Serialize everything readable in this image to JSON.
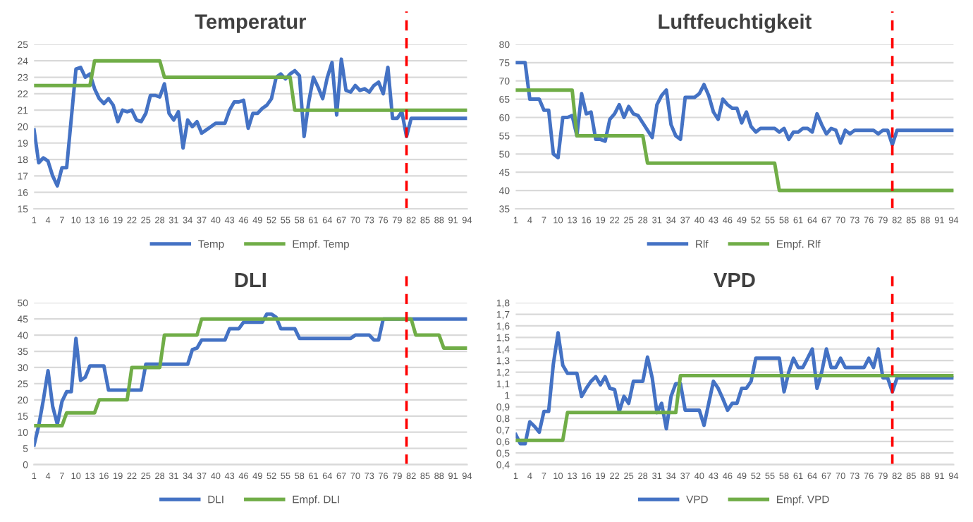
{
  "chart_data": [
    {
      "type": "line",
      "title": "Temperatur",
      "x": [
        1,
        2,
        3,
        4,
        5,
        6,
        7,
        8,
        9,
        10,
        11,
        12,
        13,
        14,
        15,
        16,
        17,
        18,
        19,
        20,
        21,
        22,
        23,
        24,
        25,
        26,
        27,
        28,
        29,
        30,
        31,
        32,
        33,
        34,
        35,
        36,
        37,
        38,
        39,
        40,
        41,
        42,
        43,
        44,
        45,
        46,
        47,
        48,
        49,
        50,
        51,
        52,
        53,
        54,
        55,
        56,
        57,
        58,
        59,
        60,
        61,
        62,
        63,
        64,
        65,
        66,
        67,
        68,
        69,
        70,
        71,
        72,
        73,
        74,
        75,
        76,
        77,
        78,
        79,
        80,
        81,
        82,
        83,
        84,
        85,
        86,
        87,
        88,
        89,
        90,
        91,
        92,
        93,
        94
      ],
      "series": [
        {
          "name": "Temp",
          "color": "#4472c4",
          "values": [
            19.8,
            17.8,
            18.1,
            17.9,
            17.0,
            16.4,
            17.5,
            17.5,
            20.5,
            23.5,
            23.6,
            23.0,
            23.2,
            22.3,
            21.7,
            21.4,
            21.7,
            21.3,
            20.3,
            21.0,
            20.9,
            21.0,
            20.4,
            20.3,
            20.8,
            21.9,
            21.9,
            21.8,
            22.6,
            20.8,
            20.4,
            20.9,
            18.7,
            20.4,
            20.0,
            20.3,
            19.6,
            19.8,
            20.0,
            20.2,
            20.2,
            20.2,
            21.0,
            21.5,
            21.5,
            21.6,
            19.9,
            20.8,
            20.8,
            21.1,
            21.3,
            21.7,
            23.0,
            23.2,
            22.9,
            23.2,
            23.4,
            23.1,
            19.4,
            21.5,
            23.0,
            22.4,
            21.7,
            23.0,
            23.9,
            20.7,
            24.1,
            22.2,
            22.1,
            22.5,
            22.2,
            22.3,
            22.1,
            22.5,
            22.7,
            22.0,
            23.6,
            20.5,
            20.5,
            20.9,
            19.4,
            20.5,
            20.5,
            20.5,
            20.5,
            20.5,
            20.5,
            20.5,
            20.5,
            20.5,
            20.5,
            20.5,
            20.5,
            20.5
          ]
        },
        {
          "name": "Empf. Temp",
          "color": "#70ad47",
          "x": [
            1,
            13,
            14,
            28,
            29,
            56,
            57,
            94
          ],
          "values": [
            22.5,
            22.5,
            24,
            24,
            23,
            23,
            21,
            21
          ]
        }
      ],
      "xlim": [
        1,
        94
      ],
      "xticks": [
        1,
        4,
        7,
        10,
        13,
        16,
        19,
        22,
        25,
        28,
        31,
        34,
        37,
        40,
        43,
        46,
        49,
        52,
        55,
        58,
        61,
        64,
        67,
        70,
        73,
        76,
        79,
        82,
        85,
        88,
        91,
        94
      ],
      "ylim": [
        15,
        25
      ],
      "yticks": [
        15,
        16,
        17,
        18,
        19,
        20,
        21,
        22,
        23,
        24,
        25
      ],
      "grid": "y",
      "legend": "bottom",
      "ref_lines": [
        {
          "axis": "x",
          "value": 81,
          "color": "#ff0000",
          "line_style": "dashed"
        }
      ]
    },
    {
      "type": "line",
      "title": "Luftfeuchtigkeit",
      "x": [
        1,
        2,
        3,
        4,
        5,
        6,
        7,
        8,
        9,
        10,
        11,
        12,
        13,
        14,
        15,
        16,
        17,
        18,
        19,
        20,
        21,
        22,
        23,
        24,
        25,
        26,
        27,
        28,
        29,
        30,
        31,
        32,
        33,
        34,
        35,
        36,
        37,
        38,
        39,
        40,
        41,
        42,
        43,
        44,
        45,
        46,
        47,
        48,
        49,
        50,
        51,
        52,
        53,
        54,
        55,
        56,
        57,
        58,
        59,
        60,
        61,
        62,
        63,
        64,
        65,
        66,
        67,
        68,
        69,
        70,
        71,
        72,
        73,
        74,
        75,
        76,
        77,
        78,
        79,
        80,
        81,
        82,
        83,
        84,
        85,
        86,
        87,
        88,
        89,
        90,
        91,
        92,
        93,
        94
      ],
      "series": [
        {
          "name": "Rlf",
          "color": "#4472c4",
          "values": [
            75,
            75,
            75,
            65,
            65,
            65,
            62,
            62,
            50,
            49,
            60,
            60,
            60.5,
            55,
            66.5,
            61,
            61.5,
            54,
            54,
            53.5,
            59.5,
            61,
            63.5,
            60,
            63,
            61,
            60.5,
            58.5,
            56.5,
            54.5,
            63.5,
            66,
            67.5,
            58,
            55,
            54,
            65.5,
            65.5,
            65.5,
            66.5,
            69,
            66,
            61.5,
            59.5,
            65,
            63.5,
            62.5,
            62.5,
            58.5,
            61.5,
            57.5,
            56,
            57,
            57,
            57,
            57,
            56,
            57,
            54,
            56,
            56,
            57,
            57,
            56,
            61,
            58,
            55.5,
            57,
            56.5,
            53,
            56.5,
            55.5,
            56.5,
            56.5,
            56.5,
            56.5,
            56.5,
            55.5,
            56.5,
            56.5,
            52.5,
            56.5,
            56.5,
            56.5,
            56.5,
            56.5,
            56.5,
            56.5,
            56.5,
            56.5,
            56.5,
            56.5,
            56.5,
            56.5
          ]
        },
        {
          "name": "Empf. Rlf",
          "color": "#70ad47",
          "x": [
            1,
            13,
            14,
            28,
            29,
            56,
            57,
            94
          ],
          "values": [
            67.5,
            67.5,
            55,
            55,
            47.5,
            47.5,
            40,
            40
          ]
        }
      ],
      "xlim": [
        1,
        94
      ],
      "xticks": [
        1,
        4,
        7,
        10,
        13,
        16,
        19,
        22,
        25,
        28,
        31,
        34,
        37,
        40,
        43,
        46,
        49,
        52,
        55,
        58,
        61,
        64,
        67,
        70,
        73,
        76,
        79,
        82,
        85,
        88,
        91,
        94
      ],
      "ylim": [
        35,
        80
      ],
      "yticks": [
        35,
        40,
        45,
        50,
        55,
        60,
        65,
        70,
        75,
        80
      ],
      "grid": "y",
      "legend": "bottom",
      "ref_lines": [
        {
          "axis": "x",
          "value": 81,
          "color": "#ff0000",
          "line_style": "dashed"
        }
      ]
    },
    {
      "type": "line",
      "title": "DLI",
      "x": [
        1,
        2,
        3,
        4,
        5,
        6,
        7,
        8,
        9,
        10,
        11,
        12,
        13,
        14,
        15,
        16,
        17,
        18,
        19,
        20,
        21,
        22,
        23,
        24,
        25,
        26,
        27,
        28,
        29,
        30,
        31,
        32,
        33,
        34,
        35,
        36,
        37,
        38,
        39,
        40,
        41,
        42,
        43,
        44,
        45,
        46,
        47,
        48,
        49,
        50,
        51,
        52,
        53,
        54,
        55,
        56,
        57,
        58,
        59,
        60,
        61,
        62,
        63,
        64,
        65,
        66,
        67,
        68,
        69,
        70,
        71,
        72,
        73,
        74,
        75,
        76,
        77,
        78,
        79,
        80,
        81,
        82,
        83,
        84,
        85,
        86,
        87,
        88,
        89,
        90,
        91,
        92,
        93,
        94
      ],
      "series": [
        {
          "name": "DLI",
          "color": "#4472c4",
          "values": [
            6,
            12,
            20,
            29,
            18,
            12.5,
            19.5,
            22.5,
            22.5,
            39,
            26,
            27,
            30.5,
            30.5,
            30.5,
            30.5,
            23,
            23,
            23,
            23,
            23,
            23,
            23,
            23,
            31,
            31,
            31,
            31,
            31,
            31,
            31,
            31,
            31,
            31,
            35.5,
            36,
            38.5,
            38.5,
            38.5,
            38.5,
            38.5,
            38.5,
            42,
            42,
            42,
            44,
            44,
            44,
            44,
            44,
            46.5,
            46.5,
            45.5,
            42,
            42,
            42,
            42,
            39,
            39,
            39,
            39,
            39,
            39,
            39,
            39,
            39,
            39,
            39,
            39,
            40,
            40,
            40,
            40,
            38.5,
            38.5,
            45,
            45,
            45,
            45,
            45,
            45,
            45,
            45,
            45,
            45,
            45,
            45,
            45,
            45,
            45,
            45,
            45,
            45,
            45
          ]
        },
        {
          "name": "Empf. DLI",
          "color": "#70ad47",
          "x": [
            1,
            7,
            8,
            14,
            15,
            21,
            22,
            28,
            29,
            36,
            37,
            82,
            83,
            88,
            89,
            94
          ],
          "values": [
            12,
            12,
            16,
            16,
            20,
            20,
            30,
            30,
            40,
            40,
            45,
            45,
            40,
            40,
            36,
            36
          ]
        }
      ],
      "xlim": [
        1,
        94
      ],
      "xticks": [
        1,
        4,
        7,
        10,
        13,
        16,
        19,
        22,
        25,
        28,
        31,
        34,
        37,
        40,
        43,
        46,
        49,
        52,
        55,
        58,
        61,
        64,
        67,
        70,
        73,
        76,
        79,
        82,
        85,
        88,
        91,
        94
      ],
      "ylim": [
        0,
        50
      ],
      "yticks": [
        0,
        5,
        10,
        15,
        20,
        25,
        30,
        35,
        40,
        45,
        50
      ],
      "grid": "y",
      "legend": "bottom",
      "ref_lines": [
        {
          "axis": "x",
          "value": 81,
          "color": "#ff0000",
          "line_style": "dashed"
        }
      ]
    },
    {
      "type": "line",
      "title": "VPD",
      "x": [
        1,
        2,
        3,
        4,
        5,
        6,
        7,
        8,
        9,
        10,
        11,
        12,
        13,
        14,
        15,
        16,
        17,
        18,
        19,
        20,
        21,
        22,
        23,
        24,
        25,
        26,
        27,
        28,
        29,
        30,
        31,
        32,
        33,
        34,
        35,
        36,
        37,
        38,
        39,
        40,
        41,
        42,
        43,
        44,
        45,
        46,
        47,
        48,
        49,
        50,
        51,
        52,
        53,
        54,
        55,
        56,
        57,
        58,
        59,
        60,
        61,
        62,
        63,
        64,
        65,
        66,
        67,
        68,
        69,
        70,
        71,
        72,
        73,
        74,
        75,
        76,
        77,
        78,
        79,
        80,
        81,
        82,
        83,
        84,
        85,
        86,
        87,
        88,
        89,
        90,
        91,
        92,
        93,
        94
      ],
      "series": [
        {
          "name": "VPD",
          "color": "#4472c4",
          "values": [
            0.66,
            0.58,
            0.58,
            0.77,
            0.73,
            0.68,
            0.86,
            0.86,
            1.27,
            1.54,
            1.26,
            1.19,
            1.19,
            1.19,
            0.99,
            1.06,
            1.12,
            1.16,
            1.09,
            1.16,
            1.06,
            1.05,
            0.86,
            0.99,
            0.93,
            1.12,
            1.12,
            1.12,
            1.33,
            1.15,
            0.85,
            0.93,
            0.71,
            0.99,
            1.1,
            1.1,
            0.87,
            0.87,
            0.87,
            0.87,
            0.74,
            0.93,
            1.12,
            1.06,
            0.97,
            0.87,
            0.93,
            0.93,
            1.06,
            1.06,
            1.12,
            1.32,
            1.32,
            1.32,
            1.32,
            1.32,
            1.32,
            1.03,
            1.2,
            1.32,
            1.24,
            1.24,
            1.32,
            1.4,
            1.06,
            1.2,
            1.4,
            1.24,
            1.24,
            1.32,
            1.24,
            1.24,
            1.24,
            1.24,
            1.24,
            1.32,
            1.24,
            1.4,
            1.15,
            1.15,
            1.03,
            1.15,
            1.15,
            1.15,
            1.15,
            1.15,
            1.15,
            1.15,
            1.15,
            1.15,
            1.15,
            1.15,
            1.15,
            1.15
          ]
        },
        {
          "name": "Empf. VPD",
          "color": "#70ad47",
          "x": [
            1,
            11,
            12,
            35,
            36,
            94
          ],
          "values": [
            0.61,
            0.61,
            0.85,
            0.85,
            1.17,
            1.17
          ]
        }
      ],
      "xlim": [
        1,
        94
      ],
      "xticks": [
        1,
        4,
        7,
        10,
        13,
        16,
        19,
        22,
        25,
        28,
        31,
        34,
        37,
        40,
        43,
        46,
        49,
        52,
        55,
        58,
        61,
        64,
        67,
        70,
        73,
        76,
        79,
        82,
        85,
        88,
        91,
        94
      ],
      "ylim": [
        0.4,
        1.8
      ],
      "yticks": [
        {
          "value": 0.4,
          "label": "0,4"
        },
        {
          "value": 0.5,
          "label": "0,5"
        },
        {
          "value": 0.6,
          "label": "0,6"
        },
        {
          "value": 0.7,
          "label": "0,7"
        },
        {
          "value": 0.8,
          "label": "0,8"
        },
        {
          "value": 0.9,
          "label": "0,9"
        },
        {
          "value": 1,
          "label": "1"
        },
        {
          "value": 1.1,
          "label": "1,1"
        },
        {
          "value": 1.2,
          "label": "1,2"
        },
        {
          "value": 1.3,
          "label": "1,3"
        },
        {
          "value": 1.4,
          "label": "1,4"
        },
        {
          "value": 1.5,
          "label": "1,5"
        },
        {
          "value": 1.6,
          "label": "1,6"
        },
        {
          "value": 1.7,
          "label": "1,7"
        },
        {
          "value": 1.8,
          "label": "1,8"
        }
      ],
      "grid": "y",
      "legend": "bottom",
      "ref_lines": [
        {
          "axis": "x",
          "value": 81,
          "color": "#ff0000",
          "line_style": "dashed"
        }
      ]
    }
  ]
}
